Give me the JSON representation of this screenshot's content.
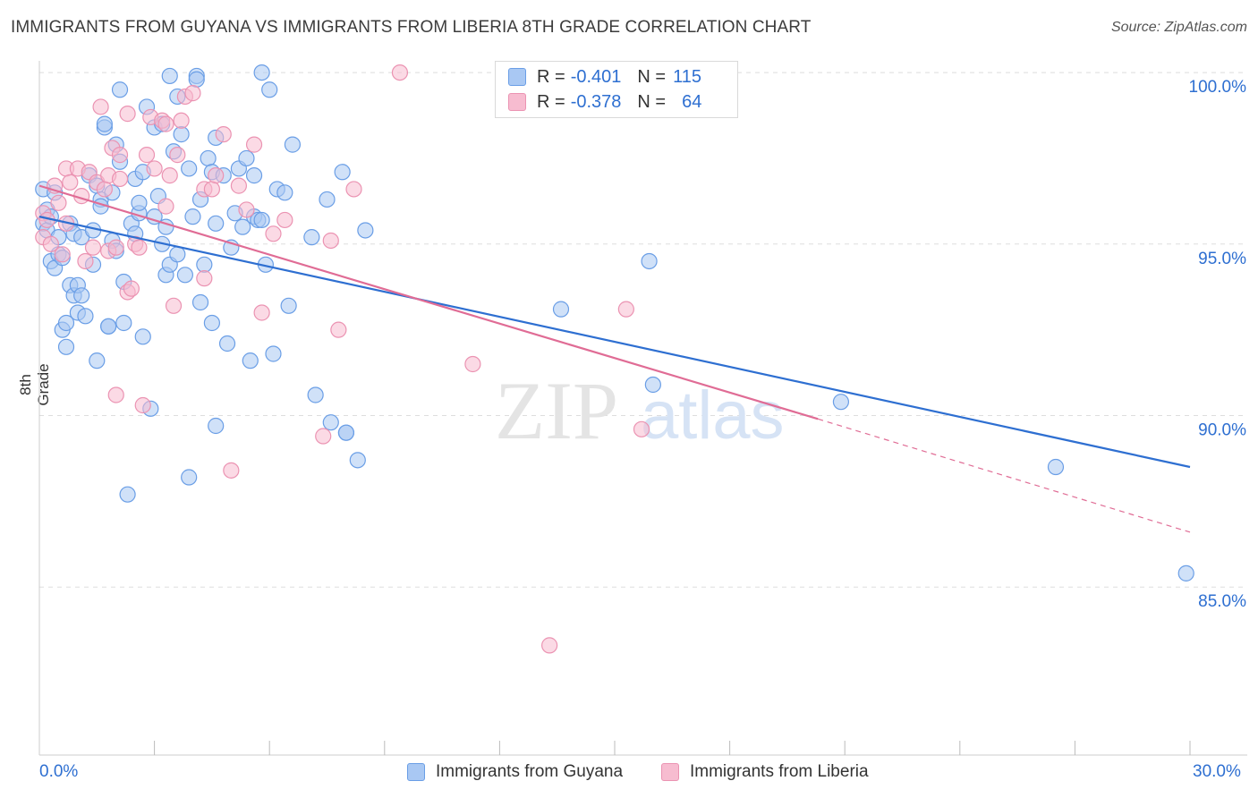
{
  "title": "IMMIGRANTS FROM GUYANA VS IMMIGRANTS FROM LIBERIA 8TH GRADE CORRELATION CHART",
  "source": "Source: ZipAtlas.com",
  "watermark": {
    "zip": "ZIP",
    "atlas": "atlas"
  },
  "colors": {
    "guyana_fill": "#a9c8f3",
    "guyana_stroke": "#6a9ee6",
    "guyana_line": "#2e6fd1",
    "liberia_fill": "#f7bcd0",
    "liberia_stroke": "#eb93b2",
    "liberia_line": "#e06c95",
    "accent_text": "#2e6fd1",
    "grid": "#dddddd"
  },
  "legend_top": {
    "rows": [
      {
        "label": "R =",
        "r": "-0.401",
        "n_label": "N =",
        "n": "115"
      },
      {
        "label": "R =",
        "r": "-0.378",
        "n_label": "N =",
        "n": "64"
      }
    ]
  },
  "legend_bottom": {
    "items": [
      "Immigrants from Guyana",
      "Immigrants from Liberia"
    ]
  },
  "chart_data": {
    "type": "scatter",
    "title": "IMMIGRANTS FROM GUYANA VS IMMIGRANTS FROM LIBERIA 8TH GRADE CORRELATION CHART",
    "xlabel": "",
    "ylabel": "8th Grade",
    "xlim": [
      0,
      30
    ],
    "ylim": [
      80.5,
      100.8
    ],
    "x_tick_labels": [
      "0.0%",
      "30.0%"
    ],
    "y_ticks": [
      85,
      90,
      95,
      100
    ],
    "y_tick_labels": [
      "85.0%",
      "90.0%",
      "95.0%",
      "100.0%"
    ],
    "grid": "horizontal dashed",
    "series": [
      {
        "name": "Immigrants from Guyana",
        "trend": {
          "x": [
            0,
            30
          ],
          "y": [
            95.8,
            88.5
          ]
        },
        "points": [
          [
            0.1,
            96.6
          ],
          [
            0.1,
            95.6
          ],
          [
            0.2,
            96.0
          ],
          [
            0.2,
            95.4
          ],
          [
            0.3,
            95.8
          ],
          [
            0.3,
            94.5
          ],
          [
            0.4,
            96.5
          ],
          [
            0.4,
            94.3
          ],
          [
            0.5,
            94.7
          ],
          [
            0.5,
            95.2
          ],
          [
            0.6,
            94.6
          ],
          [
            0.6,
            92.5
          ],
          [
            0.7,
            92.0
          ],
          [
            0.7,
            92.7
          ],
          [
            0.8,
            93.8
          ],
          [
            0.8,
            95.6
          ],
          [
            0.9,
            93.5
          ],
          [
            0.9,
            95.3
          ],
          [
            1.0,
            93.8
          ],
          [
            1.0,
            93.0
          ],
          [
            1.1,
            95.2
          ],
          [
            1.1,
            93.5
          ],
          [
            1.2,
            92.9
          ],
          [
            1.3,
            97.0
          ],
          [
            1.4,
            95.4
          ],
          [
            1.4,
            94.4
          ],
          [
            1.5,
            96.7
          ],
          [
            1.5,
            91.6
          ],
          [
            1.6,
            96.3
          ],
          [
            1.6,
            96.1
          ],
          [
            1.7,
            98.4
          ],
          [
            1.7,
            98.5
          ],
          [
            1.8,
            92.6
          ],
          [
            1.8,
            92.6
          ],
          [
            1.9,
            96.5
          ],
          [
            1.9,
            95.1
          ],
          [
            2.0,
            94.8
          ],
          [
            2.0,
            97.9
          ],
          [
            2.1,
            97.4
          ],
          [
            2.1,
            99.5
          ],
          [
            2.2,
            93.9
          ],
          [
            2.2,
            92.7
          ],
          [
            2.3,
            87.7
          ],
          [
            2.4,
            95.6
          ],
          [
            2.5,
            95.3
          ],
          [
            2.5,
            96.9
          ],
          [
            2.6,
            95.9
          ],
          [
            2.6,
            96.2
          ],
          [
            2.7,
            92.3
          ],
          [
            2.7,
            97.1
          ],
          [
            2.8,
            99.0
          ],
          [
            2.9,
            90.2
          ],
          [
            3.0,
            95.8
          ],
          [
            3.0,
            98.4
          ],
          [
            3.1,
            96.4
          ],
          [
            3.2,
            95.0
          ],
          [
            3.2,
            98.5
          ],
          [
            3.3,
            95.5
          ],
          [
            3.3,
            94.1
          ],
          [
            3.4,
            94.4
          ],
          [
            3.4,
            99.9
          ],
          [
            3.5,
            97.7
          ],
          [
            3.6,
            94.7
          ],
          [
            3.6,
            99.3
          ],
          [
            3.7,
            98.2
          ],
          [
            3.8,
            94.1
          ],
          [
            3.9,
            88.2
          ],
          [
            3.9,
            97.2
          ],
          [
            4.0,
            95.8
          ],
          [
            4.1,
            99.9
          ],
          [
            4.1,
            99.8
          ],
          [
            4.2,
            96.3
          ],
          [
            4.2,
            93.3
          ],
          [
            4.3,
            94.4
          ],
          [
            4.4,
            97.5
          ],
          [
            4.5,
            92.7
          ],
          [
            4.5,
            97.1
          ],
          [
            4.6,
            89.7
          ],
          [
            4.6,
            98.1
          ],
          [
            4.6,
            95.6
          ],
          [
            4.8,
            97.0
          ],
          [
            4.9,
            92.1
          ],
          [
            5.0,
            94.9
          ],
          [
            5.1,
            95.9
          ],
          [
            5.2,
            97.2
          ],
          [
            5.3,
            95.5
          ],
          [
            5.4,
            97.5
          ],
          [
            5.5,
            91.6
          ],
          [
            5.6,
            95.8
          ],
          [
            5.6,
            97.0
          ],
          [
            5.7,
            95.7
          ],
          [
            5.8,
            100.0
          ],
          [
            5.8,
            95.7
          ],
          [
            5.9,
            94.4
          ],
          [
            6.0,
            99.5
          ],
          [
            6.1,
            91.8
          ],
          [
            6.2,
            96.6
          ],
          [
            6.4,
            96.5
          ],
          [
            6.5,
            93.2
          ],
          [
            6.6,
            97.9
          ],
          [
            7.1,
            95.2
          ],
          [
            7.2,
            90.6
          ],
          [
            7.5,
            96.3
          ],
          [
            7.6,
            89.8
          ],
          [
            7.9,
            97.1
          ],
          [
            8.0,
            89.5
          ],
          [
            8.0,
            89.5
          ],
          [
            8.3,
            88.7
          ],
          [
            8.5,
            95.4
          ],
          [
            13.6,
            93.1
          ],
          [
            15.9,
            94.5
          ],
          [
            16.0,
            90.9
          ],
          [
            20.9,
            90.4
          ],
          [
            26.5,
            88.5
          ],
          [
            29.9,
            85.4
          ]
        ]
      },
      {
        "name": "Immigrants from Liberia",
        "trend": {
          "x": [
            0,
            20.3
          ],
          "y": [
            96.7,
            89.9
          ]
        },
        "trend_extension": {
          "x": [
            20.3,
            30
          ],
          "y": [
            89.9,
            86.6
          ]
        },
        "points": [
          [
            0.1,
            95.9
          ],
          [
            0.1,
            95.2
          ],
          [
            0.2,
            95.7
          ],
          [
            0.3,
            95.0
          ],
          [
            0.4,
            96.7
          ],
          [
            0.5,
            96.2
          ],
          [
            0.6,
            94.7
          ],
          [
            0.7,
            97.2
          ],
          [
            0.7,
            95.6
          ],
          [
            0.8,
            96.8
          ],
          [
            1.0,
            97.2
          ],
          [
            1.1,
            96.4
          ],
          [
            1.2,
            94.5
          ],
          [
            1.3,
            97.1
          ],
          [
            1.4,
            94.9
          ],
          [
            1.5,
            96.8
          ],
          [
            1.6,
            99.0
          ],
          [
            1.7,
            96.6
          ],
          [
            1.8,
            94.8
          ],
          [
            1.8,
            97.0
          ],
          [
            1.9,
            97.8
          ],
          [
            2.0,
            90.6
          ],
          [
            2.0,
            94.9
          ],
          [
            2.1,
            97.6
          ],
          [
            2.1,
            96.9
          ],
          [
            2.3,
            98.8
          ],
          [
            2.3,
            93.6
          ],
          [
            2.4,
            93.7
          ],
          [
            2.5,
            95.0
          ],
          [
            2.6,
            94.9
          ],
          [
            2.7,
            90.3
          ],
          [
            2.8,
            97.6
          ],
          [
            2.9,
            98.7
          ],
          [
            3.0,
            97.2
          ],
          [
            3.2,
            98.6
          ],
          [
            3.3,
            98.5
          ],
          [
            3.3,
            96.1
          ],
          [
            3.4,
            97.0
          ],
          [
            3.5,
            93.2
          ],
          [
            3.6,
            97.6
          ],
          [
            3.7,
            98.6
          ],
          [
            3.8,
            99.3
          ],
          [
            4.0,
            99.4
          ],
          [
            4.3,
            96.6
          ],
          [
            4.3,
            94.0
          ],
          [
            4.5,
            96.6
          ],
          [
            4.6,
            97.0
          ],
          [
            4.8,
            98.2
          ],
          [
            5.0,
            88.4
          ],
          [
            5.2,
            96.7
          ],
          [
            5.4,
            96.0
          ],
          [
            5.6,
            97.9
          ],
          [
            5.8,
            93.0
          ],
          [
            6.1,
            95.3
          ],
          [
            6.4,
            95.7
          ],
          [
            7.4,
            89.4
          ],
          [
            7.6,
            95.1
          ],
          [
            7.8,
            92.5
          ],
          [
            8.2,
            96.6
          ],
          [
            9.4,
            100.0
          ],
          [
            11.3,
            91.5
          ],
          [
            13.3,
            83.3
          ],
          [
            15.3,
            93.1
          ],
          [
            15.7,
            89.6
          ]
        ]
      }
    ]
  }
}
